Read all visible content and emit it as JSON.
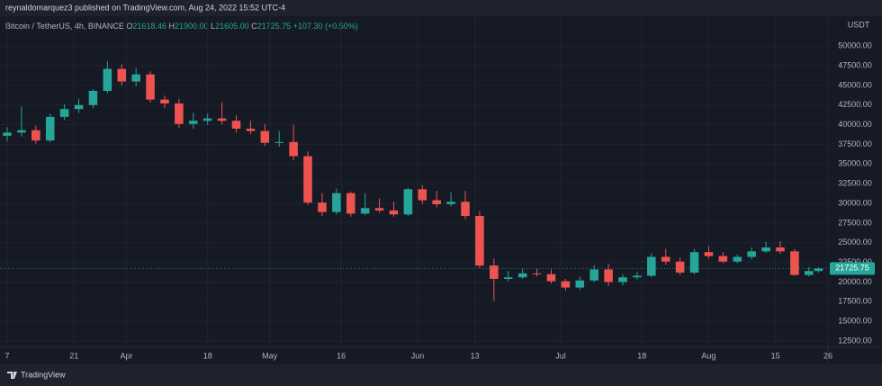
{
  "header": {
    "published": "reynaldomarquez3 published on TradingView.com, Aug 24, 2022 15:52 UTC-4"
  },
  "legend": {
    "symbol": "Bitcoin / TetherUS, 4h, BINANCE",
    "items": [
      {
        "key": "O",
        "value": "21618.46"
      },
      {
        "key": "H",
        "value": "21900.00"
      },
      {
        "key": "L",
        "value": "21605.00"
      },
      {
        "key": "C",
        "value": "21725.75"
      }
    ],
    "change": "+107.30 (+0.50%)"
  },
  "footer": {
    "brand": "TradingView"
  },
  "chart_data": {
    "type": "candlestick",
    "y_unit": "USDT",
    "up_color": "#26a69a",
    "down_color": "#ef5350",
    "x": [
      0,
      3,
      6,
      9,
      12,
      15,
      18,
      21,
      24,
      27,
      30,
      33,
      36,
      39,
      42,
      45,
      48,
      51,
      54,
      57,
      60,
      63,
      66,
      69,
      72,
      75,
      78,
      81,
      84,
      87,
      90,
      93,
      96,
      99,
      102,
      105,
      108,
      111,
      114,
      117,
      120,
      123,
      126,
      129,
      132,
      135,
      138,
      141,
      144,
      147,
      150,
      153,
      156,
      159,
      162,
      165,
      168,
      170
    ],
    "open": [
      38600,
      39000,
      39300,
      38000,
      41000,
      42000,
      42500,
      44300,
      47100,
      45500,
      46400,
      43200,
      42700,
      40100,
      40500,
      40800,
      40500,
      39500,
      39200,
      37700,
      37800,
      36000,
      30100,
      28900,
      31300,
      28700,
      29400,
      29100,
      28600,
      31800,
      30400,
      29900,
      30200,
      28400,
      22100,
      20400,
      20600,
      21100,
      21000,
      20100,
      19300,
      20200,
      21600,
      20000,
      20600,
      20800,
      23200,
      22600,
      21200,
      23800,
      23300,
      22600,
      23200,
      23900,
      24400,
      23900,
      20900,
      21400
    ],
    "high": [
      39700,
      42300,
      39900,
      41400,
      42600,
      43300,
      44500,
      48100,
      47700,
      47200,
      46800,
      43700,
      43300,
      41500,
      41400,
      42900,
      41200,
      40500,
      40100,
      39200,
      40000,
      36600,
      31300,
      31900,
      31500,
      31300,
      30600,
      30200,
      32000,
      32300,
      31600,
      31400,
      31600,
      29000,
      23000,
      21400,
      21700,
      21700,
      21600,
      20400,
      20700,
      22100,
      22300,
      21000,
      21300,
      23600,
      24200,
      23100,
      24200,
      24600,
      23800,
      23500,
      24400,
      25100,
      25200,
      24200,
      21900,
      21900
    ],
    "low": [
      37900,
      38500,
      37600,
      37800,
      40600,
      41500,
      42100,
      44000,
      45000,
      44900,
      42800,
      42100,
      39600,
      39500,
      40000,
      40000,
      39000,
      38800,
      37300,
      37200,
      35500,
      29800,
      28400,
      28600,
      28300,
      28500,
      28800,
      28300,
      28400,
      29900,
      29500,
      29600,
      28000,
      21800,
      17600,
      20100,
      20400,
      20700,
      19800,
      18900,
      19000,
      20000,
      19500,
      19600,
      20300,
      20600,
      22200,
      20900,
      21000,
      23000,
      22400,
      22400,
      22900,
      23700,
      23600,
      20800,
      20700,
      21200
    ],
    "close": [
      39000,
      39300,
      38000,
      41000,
      42000,
      42500,
      44300,
      47100,
      45500,
      46400,
      43200,
      42700,
      40100,
      40500,
      40800,
      40500,
      39500,
      39200,
      37700,
      37800,
      36000,
      30100,
      28900,
      31300,
      28700,
      29400,
      29100,
      28600,
      31800,
      30400,
      29900,
      30200,
      28400,
      22100,
      20400,
      20600,
      21100,
      21000,
      20100,
      19300,
      20200,
      21600,
      20000,
      20600,
      20800,
      23200,
      22600,
      21200,
      23800,
      23300,
      22600,
      23200,
      23900,
      24400,
      23900,
      20900,
      21400,
      21725.75
    ],
    "xlim": [
      0,
      172
    ],
    "xticks": [
      {
        "value": 0,
        "label": "7"
      },
      {
        "value": 14,
        "label": "21"
      },
      {
        "value": 25,
        "label": "Apr"
      },
      {
        "value": 42,
        "label": "18"
      },
      {
        "value": 55,
        "label": "May"
      },
      {
        "value": 70,
        "label": "16"
      },
      {
        "value": 86,
        "label": "Jun"
      },
      {
        "value": 98,
        "label": "13"
      },
      {
        "value": 116,
        "label": "Jul"
      },
      {
        "value": 133,
        "label": "18"
      },
      {
        "value": 147,
        "label": "Aug"
      },
      {
        "value": 161,
        "label": "15"
      },
      {
        "value": 172,
        "label": "26"
      }
    ],
    "ylim": [
      11700,
      53800
    ],
    "yticks": [
      {
        "value": 12500,
        "label": "12500.00"
      },
      {
        "value": 15000,
        "label": "15000.00"
      },
      {
        "value": 17500,
        "label": "17500.00"
      },
      {
        "value": 20000,
        "label": "20000.00"
      },
      {
        "value": 22500,
        "label": "22500.00"
      },
      {
        "value": 25000,
        "label": "25000.00"
      },
      {
        "value": 27500,
        "label": "27500.00"
      },
      {
        "value": 30000,
        "label": "30000.00"
      },
      {
        "value": 32500,
        "label": "32500.00"
      },
      {
        "value": 35000,
        "label": "35000.00"
      },
      {
        "value": 37500,
        "label": "37500.00"
      },
      {
        "value": 40000,
        "label": "40000.00"
      },
      {
        "value": 42500,
        "label": "42500.00"
      },
      {
        "value": 45000,
        "label": "45000.00"
      },
      {
        "value": 47500,
        "label": "47500.00"
      },
      {
        "value": 50000,
        "label": "50000.00"
      }
    ],
    "grid": true
  }
}
